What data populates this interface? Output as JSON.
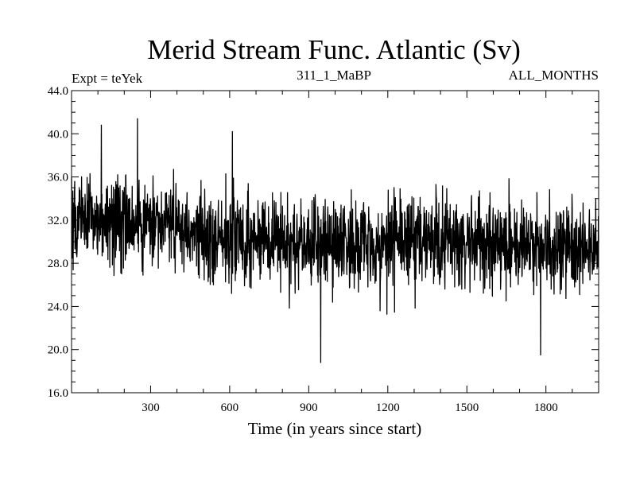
{
  "chart_data": {
    "type": "line",
    "title": "Merid Stream Func. Atlantic (Sv)",
    "left_label": "Expt = teYek",
    "center_label": "311_1_MaBP",
    "right_label": "ALL_MONTHS",
    "xlabel": "Time (in years since start)",
    "ylabel": "",
    "xlim": [
      0,
      2000
    ],
    "ylim": [
      16.0,
      44.0
    ],
    "x_ticks": [
      300,
      600,
      900,
      1200,
      1500,
      1800
    ],
    "x_tick_labels": [
      "300",
      "600",
      "900",
      "1200",
      "1500",
      "1800"
    ],
    "y_ticks": [
      16.0,
      20.0,
      24.0,
      28.0,
      32.0,
      36.0,
      40.0,
      44.0
    ],
    "y_tick_labels": [
      "16.0",
      "20.0",
      "24.0",
      "28.0",
      "32.0",
      "36.0",
      "40.0",
      "44.0"
    ],
    "series": [
      {
        "name": "Merid Stream Func. Atlantic",
        "color": "#000000",
        "trend": {
          "x": [
            0,
            250,
            400,
            600,
            800,
            1000,
            1200,
            1400,
            1600,
            1800,
            2000
          ],
          "y": [
            32.0,
            32.0,
            31.0,
            30.5,
            30.0,
            29.8,
            30.0,
            30.0,
            29.8,
            29.6,
            29.0
          ]
        },
        "peaks": [
          {
            "x": 113,
            "y": 40.8
          },
          {
            "x": 250,
            "y": 41.4
          },
          {
            "x": 610,
            "y": 40.2
          },
          {
            "x": 945,
            "y": 18.8
          },
          {
            "x": 1780,
            "y": 19.5
          }
        ],
        "noise_sd": 2.0,
        "samples": 2000
      }
    ]
  }
}
